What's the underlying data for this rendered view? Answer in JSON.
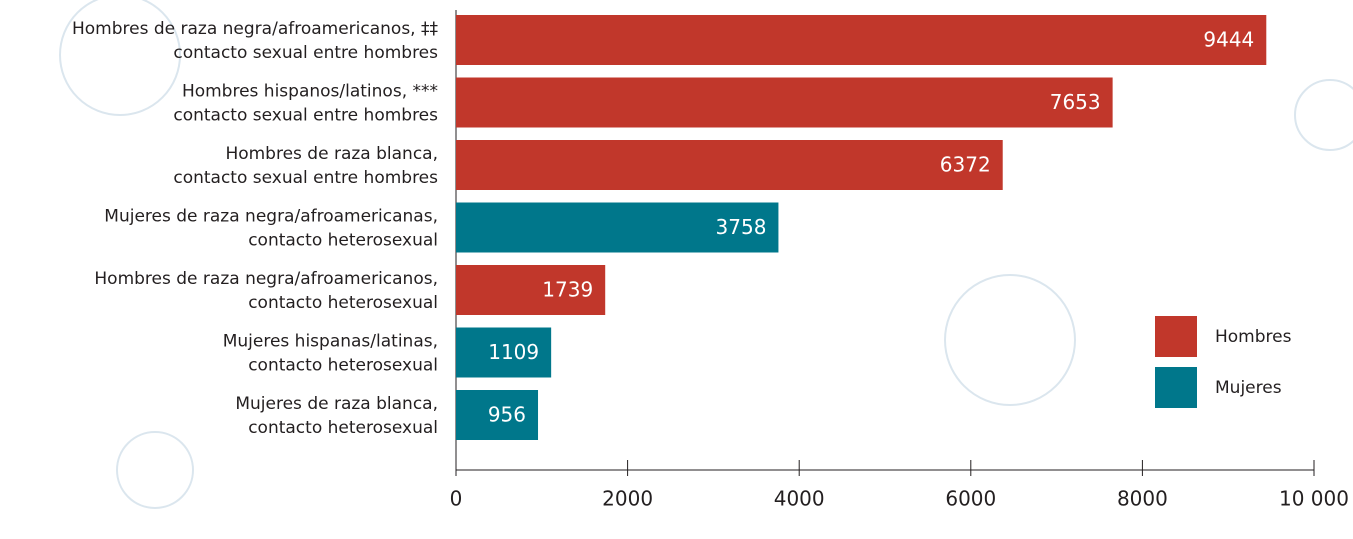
{
  "chart_data": {
    "type": "hbar",
    "categories": [
      [
        "Hombres de raza negra/afroamericanos, ‡‡",
        "contacto sexual entre hombres"
      ],
      [
        "Hombres hispanos/latinos, ***",
        "contacto sexual entre hombres"
      ],
      [
        "Hombres de raza blanca,",
        "contacto sexual entre hombres"
      ],
      [
        "Mujeres de raza negra/afroamericanas,",
        "contacto heterosexual"
      ],
      [
        "Hombres de raza negra/afroamericanos,",
        "contacto heterosexual"
      ],
      [
        "Mujeres hispanas/latinas,",
        "contacto heterosexual"
      ],
      [
        "Mujeres de raza blanca,",
        "contacto heterosexual"
      ]
    ],
    "series": [
      {
        "name": "Hombres",
        "color": "#c1372b",
        "values": [
          9444,
          7653,
          6372,
          null,
          1739,
          null,
          null
        ]
      },
      {
        "name": "Mujeres",
        "color": "#00778b",
        "values": [
          null,
          null,
          null,
          3758,
          null,
          1109,
          956
        ]
      }
    ],
    "xlim": [
      0,
      10000
    ],
    "xticks": [
      0,
      2000,
      4000,
      6000,
      8000,
      {
        "value": 10000,
        "label": "10 000"
      }
    ]
  }
}
